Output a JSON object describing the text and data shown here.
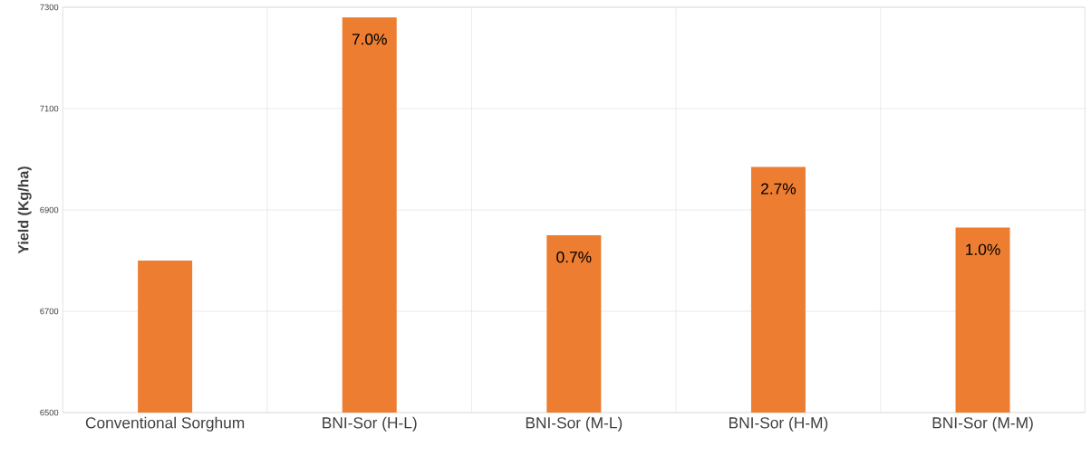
{
  "chart_data": {
    "type": "bar",
    "ylabel": "Yield (Kg/ha)",
    "categories": [
      "Conventional Sorghum",
      "BNI-Sor (H-L)",
      "BNI-Sor (M-L)",
      "BNI-Sor (H-M)",
      "BNI-Sor (M-M)"
    ],
    "values": [
      6800,
      7280,
      6850,
      6985,
      6865
    ],
    "annotations": [
      {
        "text": "7.0%",
        "x": "BNI-Sor (H-L)",
        "y": 7280
      },
      {
        "text": "0.7%",
        "x": "BNI-Sor (M-L)",
        "y": 6850
      },
      {
        "text": "2.7%",
        "x": "BNI-Sor (H-M)",
        "y": 6985
      },
      {
        "text": "1.0%",
        "x": "BNI-Sor (M-M)",
        "y": 6865
      }
    ],
    "color": "#ed7d31",
    "ylim": [
      6500,
      7300
    ],
    "yticks": [
      6500,
      6700,
      6900,
      7100,
      7300
    ],
    "grid": true
  }
}
